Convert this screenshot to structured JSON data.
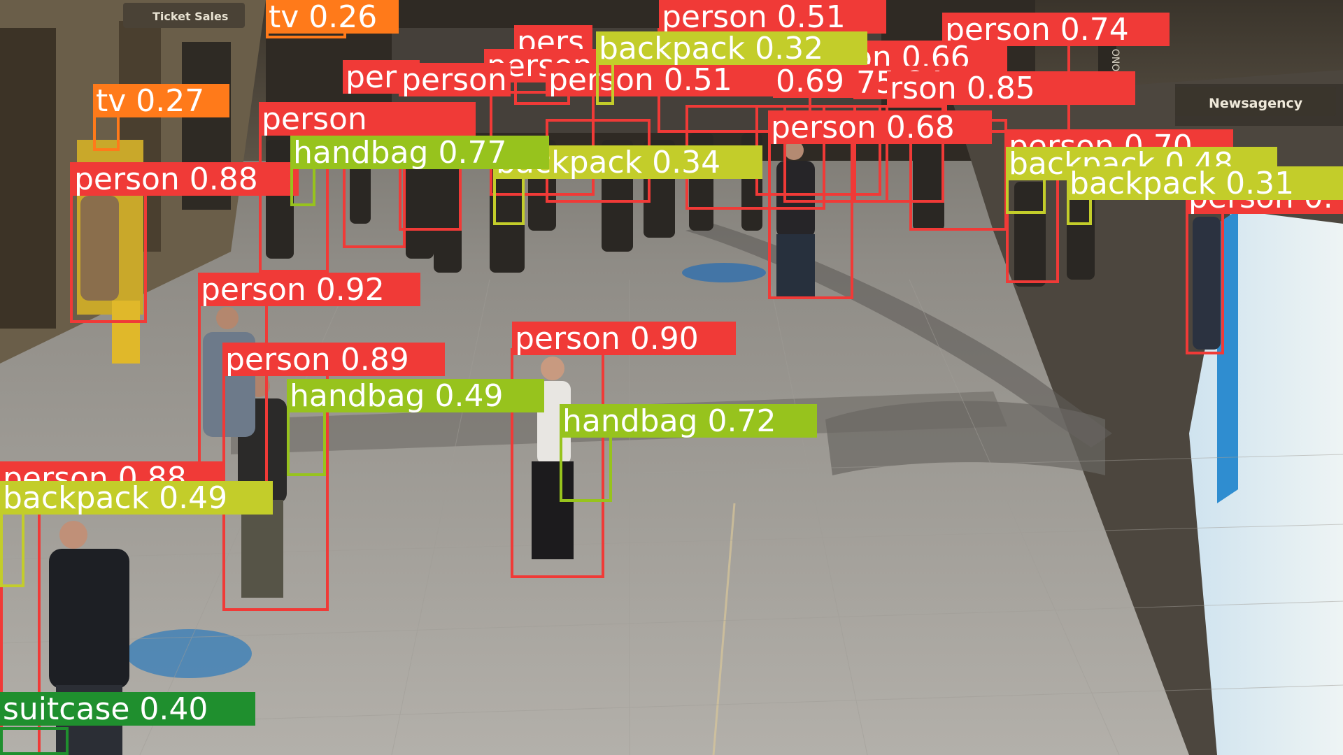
{
  "scene": {
    "name": "station-concourse-with-detections",
    "signs": [
      "Ticket Sales",
      "Newsagency",
      "ONO"
    ]
  },
  "colors": {
    "person": "#f03a37",
    "backpack": "#c3cd2a",
    "handbag": "#97c31d",
    "tv": "#ff7a1a",
    "suitcase": "#1f8f2e",
    "label_text": "#ffffff"
  },
  "detections": [
    {
      "cls": "person",
      "label": "person 0.51"
    },
    {
      "cls": "person",
      "label": "person 0.74"
    },
    {
      "cls": "person",
      "label": "pers"
    },
    {
      "cls": "person",
      "label": "person 0.58"
    },
    {
      "cls": "person",
      "label": "person 0.66"
    },
    {
      "cls": "person",
      "label": "person 0.66"
    },
    {
      "cls": "person",
      "label": "per"
    },
    {
      "cls": "person",
      "label": "person"
    },
    {
      "cls": "person",
      "label": "person 0.51"
    },
    {
      "cls": "person",
      "label": "0.69"
    },
    {
      "cls": "person",
      "label": "75.84"
    },
    {
      "cls": "person",
      "label": "rson 0.85"
    },
    {
      "cls": "person",
      "label": "person 0.88"
    },
    {
      "cls": "person",
      "label": "person 0.68"
    },
    {
      "cls": "person",
      "label": "person 0.70"
    },
    {
      "cls": "person",
      "label": "person 0.92"
    },
    {
      "cls": "person",
      "label": "person 0.90"
    },
    {
      "cls": "person",
      "label": "person 0.89"
    },
    {
      "cls": "person",
      "label": "person 0.88"
    },
    {
      "cls": "person",
      "label": "person"
    },
    {
      "cls": "person",
      "label": "person 0."
    },
    {
      "cls": "tv",
      "label": "tv 0.26"
    },
    {
      "cls": "tv",
      "label": "tv 0.27"
    },
    {
      "cls": "backpack",
      "label": "backpack 0.32"
    },
    {
      "cls": "backpack",
      "label": "backpack 0.34"
    },
    {
      "cls": "backpack",
      "label": "backpack 0.48"
    },
    {
      "cls": "backpack",
      "label": "backpack 0.31"
    },
    {
      "cls": "backpack",
      "label": "backpack 0.49"
    },
    {
      "cls": "handbag",
      "label": "handbag 0.77"
    },
    {
      "cls": "handbag",
      "label": "handbag 0.49"
    },
    {
      "cls": "handbag",
      "label": "handbag 0.72"
    },
    {
      "cls": "suitcase",
      "label": "suitcase 0.40"
    }
  ]
}
